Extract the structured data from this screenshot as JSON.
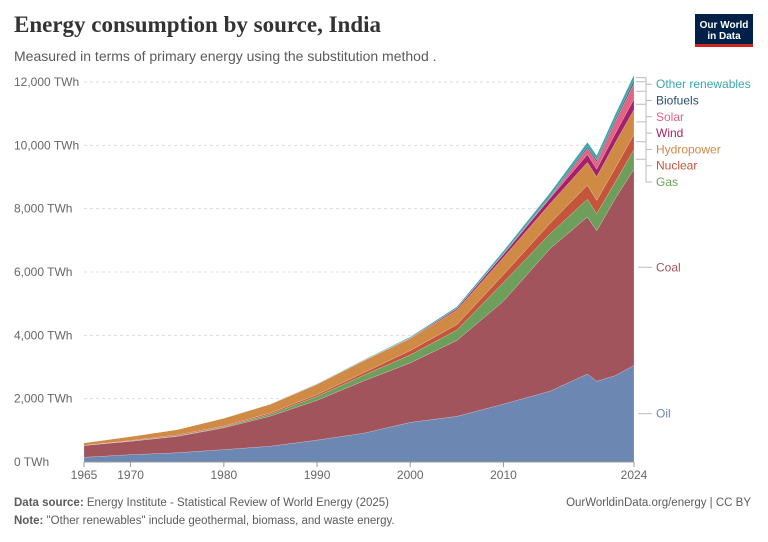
{
  "header": {
    "title": "Energy consumption by source, India",
    "subtitle": "Measured in terms of primary energy using the substitution method .",
    "logo_line1": "Our World",
    "logo_line2": "in Data"
  },
  "footer": {
    "source_label": "Data source:",
    "source_text": "Energy Institute - Statistical Review of World Energy (2025)",
    "note_label": "Note:",
    "note_text": "\"Other renewables\" include geothermal, biomass, and waste energy.",
    "credit": "OurWorldinData.org/energy | CC BY"
  },
  "chart_data": {
    "type": "area",
    "stacked": true,
    "title": "Energy consumption by source, India",
    "ylabel": "TWh",
    "ylim": [
      0,
      12000
    ],
    "yticks": [
      0,
      2000,
      4000,
      6000,
      8000,
      10000,
      12000
    ],
    "ytick_labels": [
      "0 TWh",
      "2,000 TWh",
      "4,000 TWh",
      "6,000 TWh",
      "8,000 TWh",
      "10,000 TWh",
      "12,000 TWh"
    ],
    "xlim": [
      1965,
      2024
    ],
    "xticks": [
      1965,
      1970,
      1980,
      1990,
      2000,
      2010,
      2024
    ],
    "xtick_labels": [
      "1965",
      "1970",
      "1980",
      "1990",
      "2000",
      "2010",
      "2024"
    ],
    "x": [
      1965,
      1970,
      1975,
      1980,
      1985,
      1990,
      1995,
      2000,
      2005,
      2010,
      2015,
      2019,
      2020,
      2022,
      2024
    ],
    "series": [
      {
        "name": "Oil",
        "color": "#6d87b3",
        "values": [
          150,
          230,
          290,
          390,
          500,
          690,
          910,
          1250,
          1440,
          1830,
          2240,
          2780,
          2550,
          2730,
          3050
        ]
      },
      {
        "name": "Coal",
        "color": "#a2545d",
        "values": [
          375,
          425,
          520,
          690,
          950,
          1260,
          1650,
          1880,
          2400,
          3250,
          4500,
          4960,
          4750,
          5600,
          6200
        ]
      },
      {
        "name": "Gas",
        "color": "#6d9e5c",
        "values": [
          0,
          5,
          15,
          25,
          60,
          120,
          180,
          250,
          330,
          590,
          470,
          560,
          540,
          520,
          620
        ]
      },
      {
        "name": "Nuclear",
        "color": "#c4553a",
        "values": [
          0,
          20,
          30,
          30,
          40,
          60,
          80,
          140,
          170,
          250,
          330,
          440,
          420,
          440,
          480
        ]
      },
      {
        "name": "Hydropower",
        "color": "#cf8a45",
        "values": [
          80,
          130,
          170,
          250,
          280,
          330,
          380,
          380,
          460,
          540,
          620,
          720,
          750,
          800,
          780
        ]
      },
      {
        "name": "Wind",
        "color": "#a3216a",
        "values": [
          0,
          0,
          0,
          0,
          0,
          0,
          5,
          20,
          50,
          100,
          170,
          250,
          240,
          290,
          330
        ]
      },
      {
        "name": "Solar",
        "color": "#e16483",
        "values": [
          0,
          0,
          0,
          0,
          0,
          0,
          0,
          0,
          0,
          5,
          30,
          200,
          230,
          380,
          500
        ]
      },
      {
        "name": "Biofuels",
        "color": "#2a4c74",
        "values": [
          0,
          0,
          0,
          0,
          0,
          0,
          0,
          0,
          5,
          20,
          30,
          50,
          60,
          70,
          90
        ]
      },
      {
        "name": "Other renewables",
        "color": "#3aa7a7",
        "values": [
          0,
          0,
          0,
          0,
          5,
          10,
          20,
          30,
          50,
          80,
          110,
          140,
          140,
          160,
          180
        ]
      }
    ],
    "legend_placement": "right"
  }
}
